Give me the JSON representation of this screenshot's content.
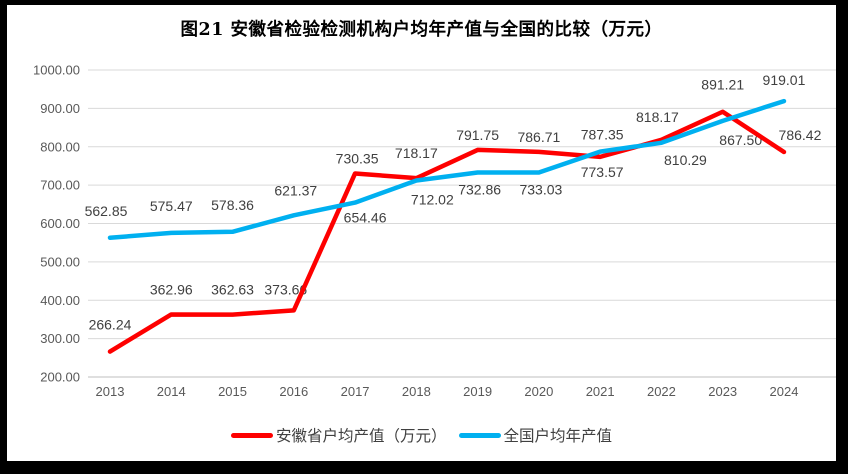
{
  "frame": {
    "border_color": "#000000",
    "background": "#ffffff"
  },
  "chart_data": {
    "type": "line",
    "title": "图21 安徽省检验检测机构户均年产值与全国的比较（万元）",
    "categories": [
      "2013",
      "2014",
      "2015",
      "2016",
      "2017",
      "2018",
      "2019",
      "2020",
      "2021",
      "2022",
      "2023",
      "2024"
    ],
    "y_axis": {
      "min": 200,
      "max": 1000,
      "step": 100
    },
    "y_tick_labels": [
      "200.00",
      "300.00",
      "400.00",
      "500.00",
      "600.00",
      "700.00",
      "800.00",
      "900.00",
      "1000.00"
    ],
    "grid": true,
    "legend_position": "bottom",
    "palette": {
      "grid_color": "#d9d9d9",
      "axis_line_color": "#bfbfbf",
      "tick_label_color": "#595959",
      "data_label_color": "#404040"
    },
    "series": [
      {
        "name": "安徽省户均产值（万元）",
        "color": "#fe0000",
        "values": [
          266.24,
          362.96,
          362.63,
          373.66,
          730.35,
          718.17,
          791.75,
          786.71,
          773.57,
          818.17,
          891.21,
          786.42
        ],
        "label_side": [
          "above",
          "above",
          "above",
          "above",
          "above",
          "above",
          "above",
          "above",
          "below",
          "above",
          "above",
          "above"
        ],
        "label_dx": [
          0,
          0,
          0,
          -8,
          2,
          0,
          0,
          0,
          2,
          -4,
          0,
          16
        ],
        "label_dy": [
          -6,
          -4,
          -4,
          0,
          6,
          -4,
          6,
          6,
          0,
          -2,
          -6,
          4
        ]
      },
      {
        "name": "全国户均年产值",
        "color": "#00b0f0",
        "values": [
          562.85,
          575.47,
          578.36,
          621.37,
          654.46,
          712.02,
          732.86,
          733.03,
          787.35,
          810.29,
          867.5,
          919.01
        ],
        "label_side": [
          "above",
          "above",
          "above",
          "above",
          "below",
          "below",
          "below",
          "below",
          "above",
          "below",
          "below",
          "above"
        ],
        "label_dx": [
          -4,
          0,
          0,
          2,
          10,
          16,
          2,
          2,
          2,
          24,
          18,
          0
        ],
        "label_dy": [
          -6,
          -6,
          -6,
          -4,
          0,
          4,
          2,
          2,
          4,
          2,
          4,
          0
        ]
      }
    ]
  }
}
